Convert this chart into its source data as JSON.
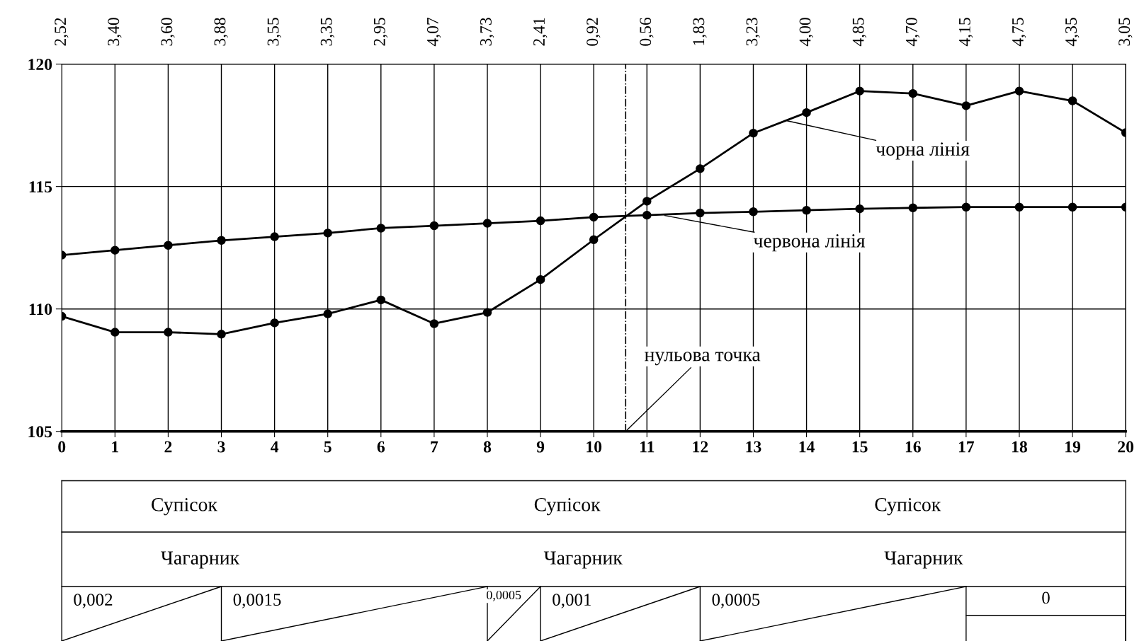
{
  "chart_data": {
    "type": "line",
    "x": [
      0,
      1,
      2,
      3,
      4,
      5,
      6,
      7,
      8,
      9,
      10,
      11,
      12,
      13,
      14,
      15,
      16,
      17,
      18,
      19,
      20
    ],
    "series": [
      {
        "name": "чорна лінія",
        "color": "#000000",
        "values": [
          109.7,
          109.05,
          109.05,
          108.97,
          109.43,
          109.8,
          110.37,
          109.4,
          109.86,
          111.2,
          112.83,
          114.4,
          115.73,
          117.18,
          118.02,
          118.9,
          118.8,
          118.3,
          118.9,
          118.5,
          117.2
        ]
      },
      {
        "name": "червона лінія",
        "color": "#000000",
        "values": [
          112.2,
          112.4,
          112.6,
          112.8,
          112.95,
          113.1,
          113.3,
          113.4,
          113.5,
          113.6,
          113.75,
          113.83,
          113.92,
          113.97,
          114.03,
          114.09,
          114.13,
          114.16,
          114.16,
          114.16,
          114.16
        ]
      }
    ],
    "xlim": [
      0,
      20
    ],
    "xticks": [
      0,
      1,
      2,
      3,
      4,
      5,
      6,
      7,
      8,
      9,
      10,
      11,
      12,
      13,
      14,
      15,
      16,
      17,
      18,
      19,
      20
    ],
    "ylim": [
      105,
      120
    ],
    "yticks": [
      105,
      110,
      115,
      120
    ],
    "ref_lines": [
      {
        "axis": "x",
        "value": 10.6,
        "label": "нульова точка",
        "line_style": "dashdot",
        "color": "#000000"
      }
    ],
    "annotations": [
      "Супісок",
      "Супісок",
      "Супісок",
      "Чагарник",
      "Чагарник",
      "Чагарник",
      "0,002",
      "0,0015",
      "0,0005",
      "0,001",
      "0,0005",
      "0",
      "2,52",
      "3,40",
      "3,60",
      "3,88",
      "3,55",
      "3,35",
      "2,95",
      "4,07",
      "3,73",
      "2,41",
      "0,92",
      "0,56",
      "1,83",
      "3,23",
      "4,00",
      "4,85",
      "4,70",
      "4,15",
      "4,75",
      "4,35",
      "3,05"
    ],
    "grid": true,
    "marker": "circle",
    "line_style": "solid"
  }
}
